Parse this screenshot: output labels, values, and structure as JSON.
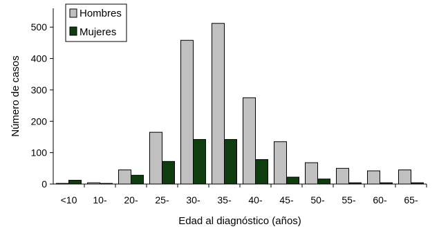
{
  "chart_data": {
    "type": "bar",
    "title": "",
    "xlabel": "Edad al diagnóstico (años)",
    "ylabel": "Número de casos",
    "categories": [
      "<10",
      "10-",
      "20-",
      "25-",
      "30-",
      "35-",
      "40-",
      "45-",
      "50-",
      "55-",
      "60-",
      "65-"
    ],
    "series": [
      {
        "name": "Hombres",
        "color": "#c0c0c0",
        "values": [
          2,
          4,
          45,
          165,
          458,
          512,
          275,
          135,
          68,
          50,
          42,
          45
        ]
      },
      {
        "name": "Mujeres",
        "color": "#0f3d0f",
        "values": [
          12,
          2,
          28,
          72,
          142,
          142,
          78,
          22,
          16,
          4,
          4,
          4
        ]
      }
    ],
    "ylim": [
      0,
      560
    ],
    "yticks": [
      0,
      100,
      200,
      300,
      400,
      500
    ],
    "grid": false,
    "legend": "top-left"
  }
}
